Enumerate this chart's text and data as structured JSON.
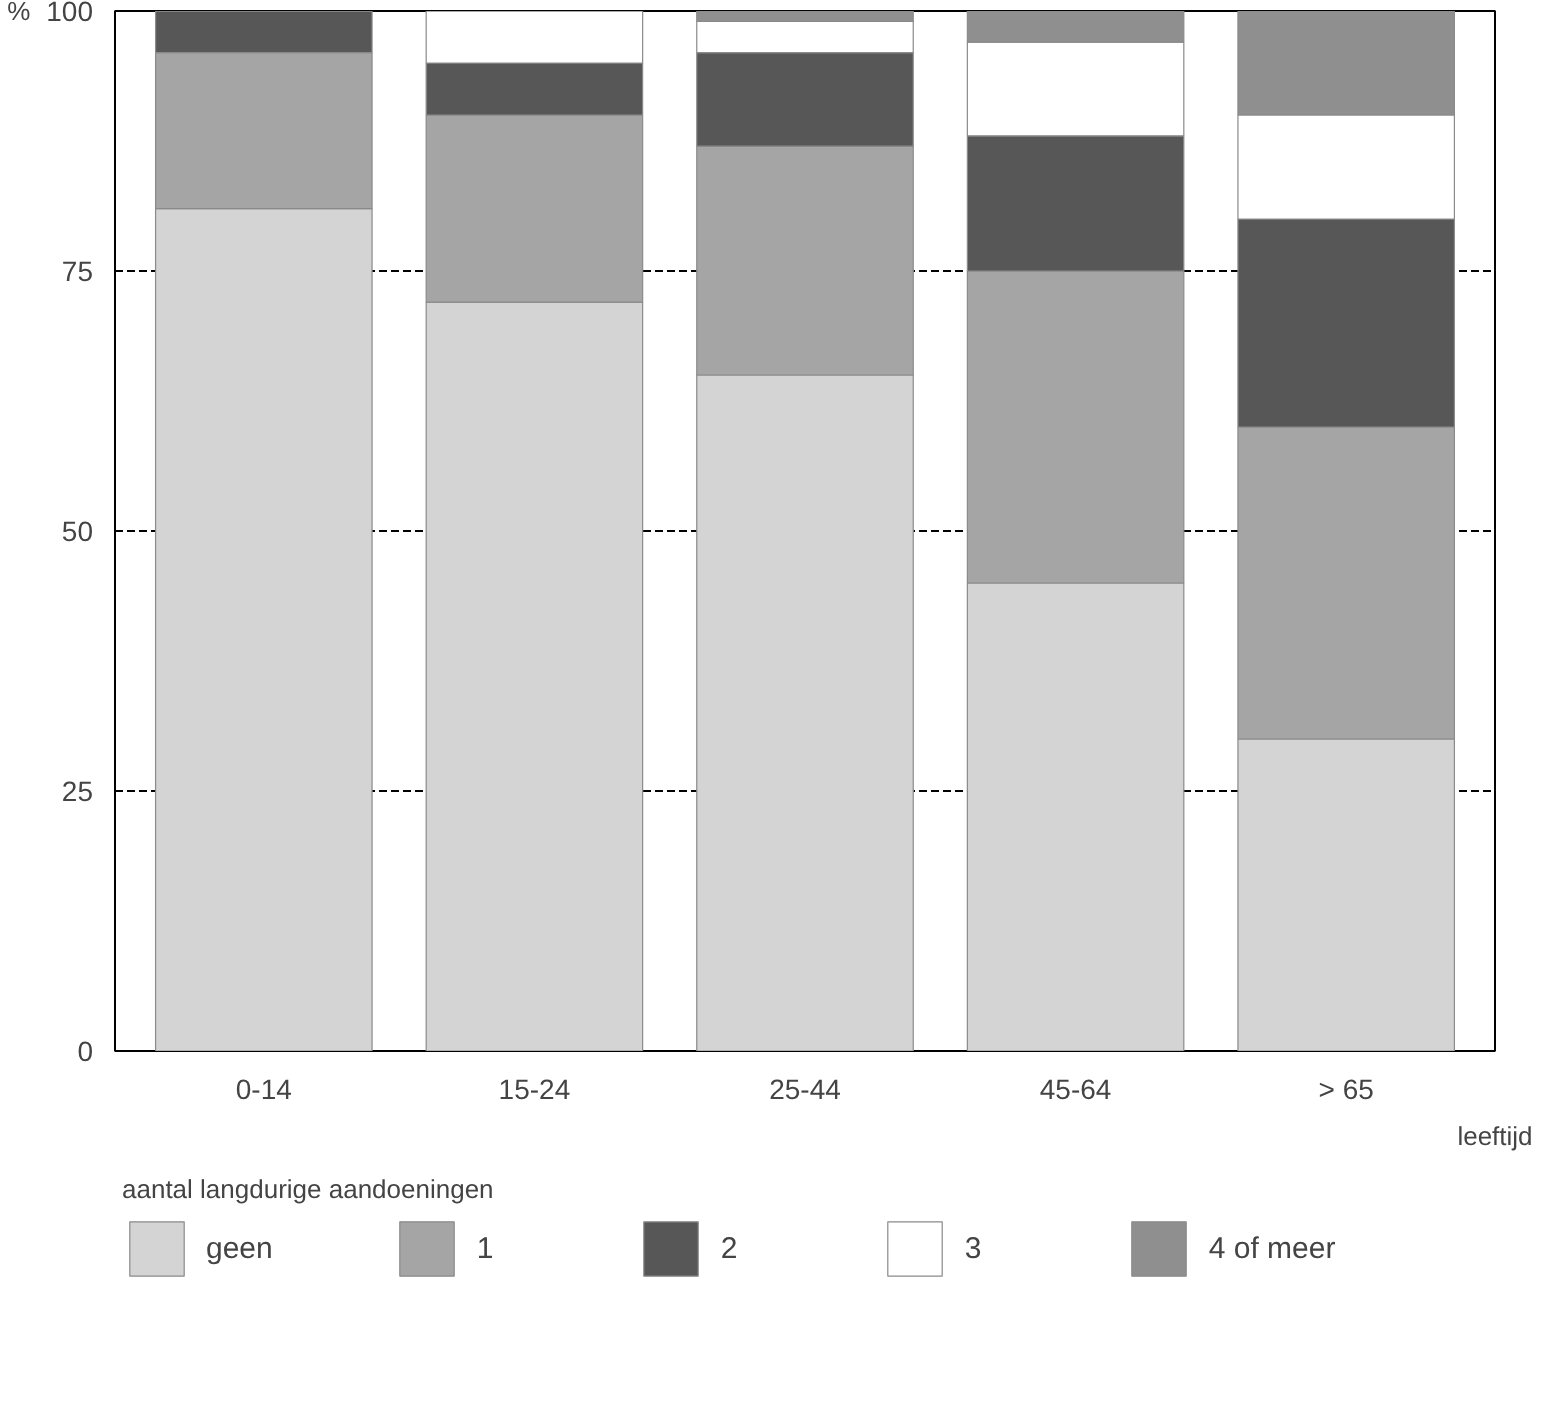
{
  "chart_data": {
    "type": "bar",
    "stacked": true,
    "categories": [
      "0-14",
      "15-24",
      "25-44",
      "45-64",
      "> 65"
    ],
    "xlabel": "leeftijd",
    "ylabel": "%",
    "legend_title": "aantal langdurige aandoeningen",
    "series": [
      {
        "name": "geen",
        "color": "#d4d4d4",
        "values": [
          81,
          72,
          65,
          45,
          30
        ]
      },
      {
        "name": "1",
        "color": "#a5a5a5",
        "values": [
          15,
          18,
          22,
          30,
          30
        ]
      },
      {
        "name": "2",
        "color": "#575757",
        "values": [
          4,
          5,
          9,
          13,
          20
        ]
      },
      {
        "name": "3",
        "color": "#ffffff",
        "values": [
          0,
          5,
          3,
          9,
          10
        ]
      },
      {
        "name": "4 of meer",
        "color": "#8f8f8f",
        "values": [
          0,
          0,
          1,
          3,
          10
        ]
      }
    ],
    "ylim": [
      0,
      100
    ],
    "yticks": [
      0,
      25,
      50,
      75,
      100
    ],
    "grid": "y",
    "legend": "bottom"
  }
}
